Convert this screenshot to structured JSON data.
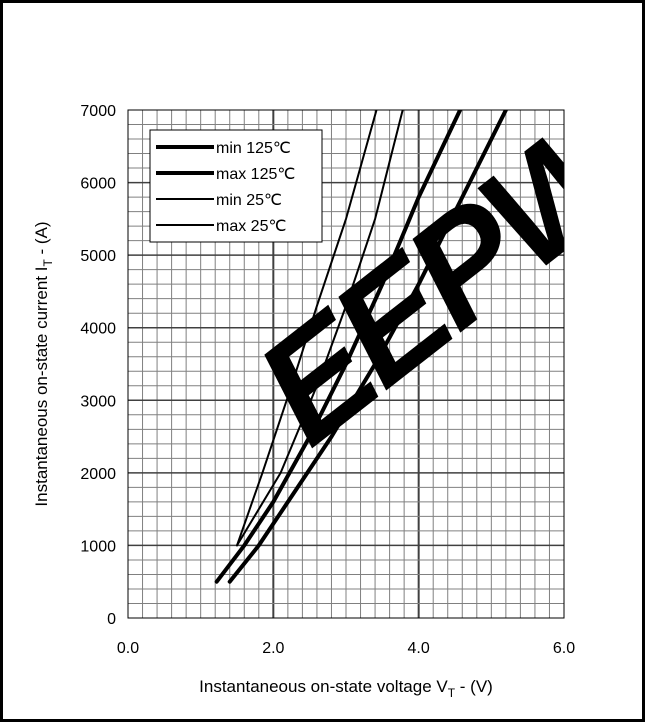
{
  "chart_data": {
    "type": "line",
    "xlabel": "Instantaneous on-state voltage V",
    "xlabel_sub": "T",
    "xlabel_unit": " - (V)",
    "ylabel": "Instantaneous on-state current I",
    "ylabel_sub": "T",
    "ylabel_unit": " -  (A)",
    "xlim": [
      0,
      6
    ],
    "ylim": [
      0,
      7000
    ],
    "x_ticks": [
      "0.0",
      "2.0",
      "4.0",
      "6.0"
    ],
    "y_ticks": [
      "0",
      "1000",
      "2000",
      "3000",
      "4000",
      "5000",
      "6000",
      "7000"
    ],
    "grid": true,
    "legend_position": "top-left",
    "series": [
      {
        "name": "min 125℃",
        "line_weight": "thick",
        "x": [
          1.22,
          1.6,
          2.0,
          2.5,
          3.0,
          3.5,
          4.0,
          4.57
        ],
        "y": [
          500,
          1000,
          1600,
          2500,
          3500,
          4600,
          5800,
          7000
        ]
      },
      {
        "name": "max 125℃",
        "line_weight": "thick",
        "x": [
          1.4,
          1.8,
          2.2,
          2.8,
          3.4,
          4.0,
          4.6,
          5.2
        ],
        "y": [
          500,
          1000,
          1600,
          2500,
          3500,
          4600,
          5800,
          7000
        ]
      },
      {
        "name": "min 25℃",
        "line_weight": "thin",
        "x": [
          1.5,
          1.85,
          2.25,
          2.6,
          3.0,
          3.42
        ],
        "y": [
          1000,
          2000,
          3200,
          4300,
          5500,
          7000
        ]
      },
      {
        "name": "max 25℃",
        "line_weight": "thin",
        "x": [
          1.5,
          2.1,
          2.6,
          3.0,
          3.4,
          3.78
        ],
        "y": [
          1000,
          2000,
          3200,
          4300,
          5500,
          7000
        ]
      }
    ],
    "watermark": "EEPW",
    "colors": {
      "line": "#000000",
      "grid": "#808080",
      "watermark": "#e62e2e"
    }
  }
}
